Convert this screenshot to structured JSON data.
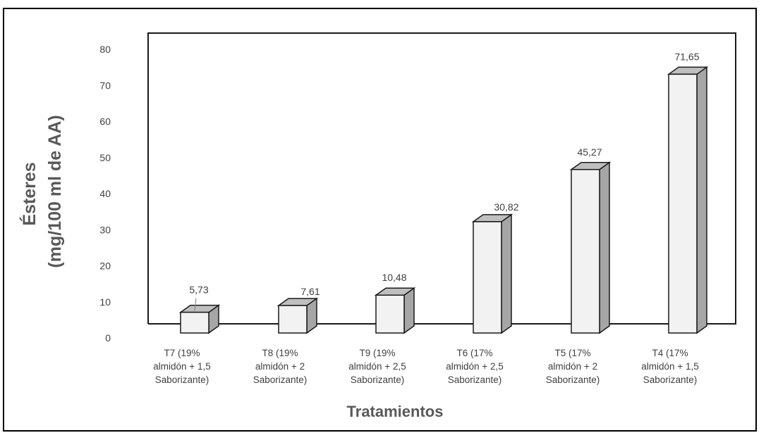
{
  "chart_data": {
    "type": "bar",
    "style": "3d-column",
    "categories": [
      [
        "T7 (19%",
        "almidón + 1,5",
        "Saborizante)"
      ],
      [
        "T8 (19%",
        "almidón + 2",
        "Saborizante)"
      ],
      [
        "T9 (19%",
        "almidón + 2,5",
        "Saborizante)"
      ],
      [
        "T6 (17%",
        "almidón + 2,5",
        "Saborizante)"
      ],
      [
        "T5 (17%",
        "almidón + 2",
        "Saborizante)"
      ],
      [
        "T4 (17%",
        "almidón + 1,5",
        "Saborizante)"
      ]
    ],
    "values": [
      5.73,
      7.61,
      10.48,
      30.82,
      45.27,
      71.65
    ],
    "data_labels": [
      "5,73",
      "7,61",
      "10,48",
      "30,82",
      "45,27",
      "71,65"
    ],
    "xlabel": "Tratamientos",
    "ylabel": [
      "Ésteres",
      "(mg/100 ml de AA)"
    ],
    "ylim": [
      0,
      80
    ],
    "yticks": [
      "0",
      "10",
      "20",
      "30",
      "40",
      "50",
      "60",
      "70",
      "80"
    ],
    "grid": false,
    "legend": "none",
    "colors": {
      "front": "#f2f2f2",
      "top": "#bfbfbf",
      "side": "#a6a6a6",
      "stroke": "#1a1a1a",
      "text": "#404040"
    }
  }
}
